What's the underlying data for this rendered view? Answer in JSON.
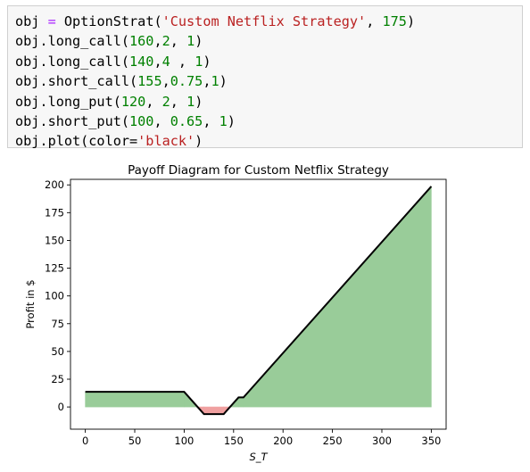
{
  "code_cell": {
    "lines": [
      [
        {
          "t": "obj "
        },
        {
          "t": "=",
          "c": "op"
        },
        {
          "t": " OptionStrat("
        },
        {
          "t": "'Custom Netflix Strategy'",
          "c": "str"
        },
        {
          "t": ", "
        },
        {
          "t": "175",
          "c": "num"
        },
        {
          "t": ")"
        }
      ],
      [
        {
          "t": "obj.long_call("
        },
        {
          "t": "160",
          "c": "num"
        },
        {
          "t": ","
        },
        {
          "t": "2",
          "c": "num"
        },
        {
          "t": ", "
        },
        {
          "t": "1",
          "c": "num"
        },
        {
          "t": ")"
        }
      ],
      [
        {
          "t": "obj.long_call("
        },
        {
          "t": "140",
          "c": "num"
        },
        {
          "t": ","
        },
        {
          "t": "4",
          "c": "num"
        },
        {
          "t": " , "
        },
        {
          "t": "1",
          "c": "num"
        },
        {
          "t": ")"
        }
      ],
      [
        {
          "t": "obj.short_call("
        },
        {
          "t": "155",
          "c": "num"
        },
        {
          "t": ","
        },
        {
          "t": "0.75",
          "c": "num"
        },
        {
          "t": ","
        },
        {
          "t": "1",
          "c": "num"
        },
        {
          "t": ")"
        }
      ],
      [
        {
          "t": "obj.long_put("
        },
        {
          "t": "120",
          "c": "num"
        },
        {
          "t": ", "
        },
        {
          "t": "2",
          "c": "num"
        },
        {
          "t": ", "
        },
        {
          "t": "1",
          "c": "num"
        },
        {
          "t": ")"
        }
      ],
      [
        {
          "t": "obj.short_put("
        },
        {
          "t": "100",
          "c": "num"
        },
        {
          "t": ", "
        },
        {
          "t": "0.65",
          "c": "num"
        },
        {
          "t": ", "
        },
        {
          "t": "1",
          "c": "num"
        },
        {
          "t": ")"
        }
      ],
      [
        {
          "t": "obj.plot(color="
        },
        {
          "t": "'black'",
          "c": "str"
        },
        {
          "t": ")"
        }
      ]
    ]
  },
  "colors": {
    "code_operator": "#aa22ff",
    "code_string": "#ba2121",
    "code_number": "#008000",
    "profit_fill": "#99cc99",
    "loss_fill": "#f0a0a0",
    "payoff_line": "#000000"
  },
  "chart_data": {
    "type": "area",
    "title": "Payoff Diagram for Custom Netflix Strategy",
    "xlabel": "S_T",
    "ylabel": "Profit in $",
    "xlim": [
      -15,
      365
    ],
    "ylim": [
      -20,
      205
    ],
    "xticks": [
      0,
      50,
      100,
      150,
      200,
      250,
      300,
      350
    ],
    "yticks": [
      0,
      25,
      50,
      75,
      100,
      125,
      150,
      175,
      200
    ],
    "grid": false,
    "series": [
      {
        "x": [
          0,
          100,
          120,
          140,
          155,
          160,
          350
        ],
        "y": [
          13.6,
          13.6,
          -6.4,
          -6.4,
          8.6,
          8.6,
          198.6
        ]
      }
    ]
  }
}
